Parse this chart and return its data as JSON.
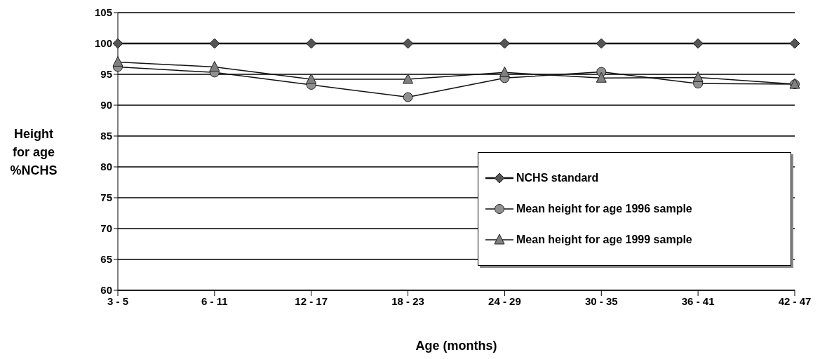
{
  "chart_data": {
    "type": "line",
    "xlabel": "Age (months)",
    "ylabel": "Height for age %NCHS",
    "categories": [
      "3 - 5",
      "6 - 11",
      "12 - 17",
      "18 - 23",
      "24 - 29",
      "30 - 35",
      "36 - 41",
      "42 - 47"
    ],
    "series": [
      {
        "name": "NCHS standard",
        "color": "#555555",
        "marker": "diamond",
        "values": [
          100,
          100,
          100,
          100,
          100,
          100,
          100,
          100
        ]
      },
      {
        "name": "Mean height for age 1996 sample",
        "color": "#909090",
        "marker": "circle",
        "values": [
          96.2,
          95.3,
          93.3,
          91.3,
          94.4,
          95.4,
          93.5,
          93.4
        ]
      },
      {
        "name": "Mean height for age 1999 sample",
        "color": "#808080",
        "marker": "triangle",
        "values": [
          97,
          96.2,
          94.2,
          94.2,
          95.3,
          94.4,
          94.5,
          93.4
        ]
      }
    ],
    "ylim": [
      60,
      105
    ],
    "yticks": [
      60,
      65,
      70,
      75,
      80,
      85,
      90,
      95,
      100,
      105
    ],
    "grid": "y",
    "legend": "bottom right"
  }
}
